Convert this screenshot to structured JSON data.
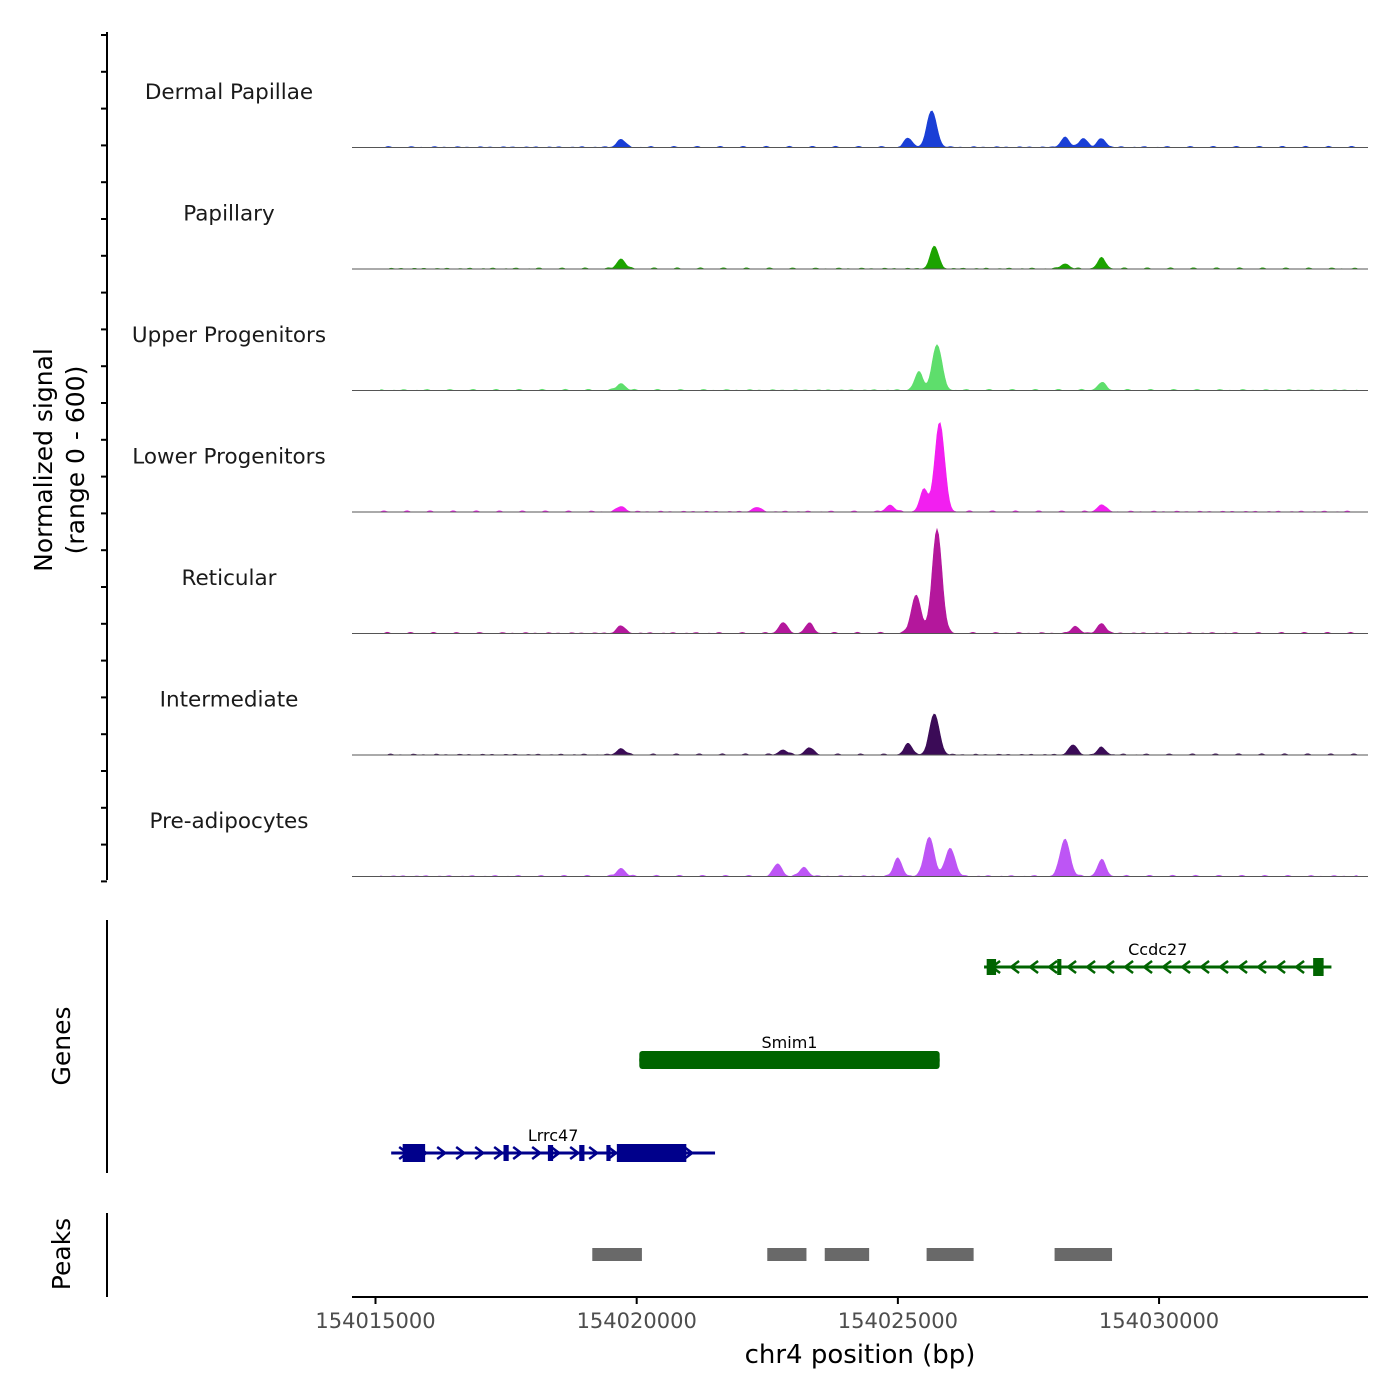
{
  "chart_data": {
    "type": "area",
    "title": "",
    "xlabel": "chr4 position (bp)",
    "ylabel": "Normalized signal",
    "ylabel_range": "(range 0 - 600)",
    "ylim": [
      0,
      600
    ],
    "xlim": [
      154014550,
      154034000
    ],
    "x_ticks": [
      154015000,
      154020000,
      154025000,
      154030000
    ],
    "x_tick_labels": [
      "154015000",
      "154020000",
      "154025000",
      "154030000"
    ],
    "tracks": [
      {
        "name": "Dermal Papillae",
        "color": "#1a3fd6",
        "peaks": [
          [
            154019700,
            45
          ],
          [
            154025200,
            50
          ],
          [
            154025650,
            200
          ],
          [
            154028200,
            55
          ],
          [
            154028550,
            50
          ],
          [
            154028900,
            48
          ]
        ]
      },
      {
        "name": "Papillary",
        "color": "#1ca300",
        "peaks": [
          [
            154019700,
            55
          ],
          [
            154025700,
            125
          ],
          [
            154028200,
            28
          ],
          [
            154028900,
            58
          ]
        ]
      },
      {
        "name": "Upper Progenitors",
        "color": "#5ede6c",
        "peaks": [
          [
            154019700,
            38
          ],
          [
            154025400,
            100
          ],
          [
            154025750,
            250
          ],
          [
            154028900,
            42
          ]
        ]
      },
      {
        "name": "Lower Progenitors",
        "color": "#f21ff0",
        "peaks": [
          [
            154019700,
            30
          ],
          [
            154022300,
            25
          ],
          [
            154024850,
            38
          ],
          [
            154025500,
            120
          ],
          [
            154025800,
            490
          ],
          [
            154028900,
            40
          ]
        ]
      },
      {
        "name": "Reticular",
        "color": "#b4179c",
        "peaks": [
          [
            154019700,
            42
          ],
          [
            154022800,
            60
          ],
          [
            154023300,
            55
          ],
          [
            154025350,
            210
          ],
          [
            154025750,
            570
          ],
          [
            154028400,
            38
          ],
          [
            154028900,
            55
          ]
        ]
      },
      {
        "name": "Intermediate",
        "color": "#3b0b57",
        "peaks": [
          [
            154019700,
            35
          ],
          [
            154022800,
            28
          ],
          [
            154023300,
            40
          ],
          [
            154025200,
            60
          ],
          [
            154025700,
            225
          ],
          [
            154028350,
            55
          ],
          [
            154028900,
            40
          ]
        ]
      },
      {
        "name": "Pre-adipocytes",
        "color": "#bd55f5",
        "peaks": [
          [
            154019700,
            45
          ],
          [
            154022700,
            70
          ],
          [
            154023200,
            50
          ],
          [
            154025000,
            100
          ],
          [
            154025600,
            215
          ],
          [
            154026000,
            155
          ],
          [
            154028200,
            205
          ],
          [
            154028900,
            90
          ]
        ]
      }
    ],
    "genes": [
      {
        "name": "Ccdc27",
        "start": 154026650,
        "end": 154033300,
        "strand": "-",
        "color": "#006400",
        "row": 1
      },
      {
        "name": "Smim1",
        "start": 154020050,
        "end": 154025800,
        "strand": "+",
        "color": "#006400",
        "row": 2
      },
      {
        "name": "Lrrc47",
        "start": 154015300,
        "end": 154021500,
        "strand": "+",
        "color": "#00008b",
        "row": 3
      }
    ],
    "peaks_track": [
      [
        154019150,
        154020100
      ],
      [
        154022500,
        154023250
      ],
      [
        154023600,
        154024450
      ],
      [
        154025550,
        154026450
      ],
      [
        154028000,
        154029100
      ]
    ],
    "panel_labels": {
      "genes": "Genes",
      "peaks": "Peaks"
    },
    "colors": {
      "peak_bar": "#696969",
      "axis": "#000000",
      "baseline": "#555555"
    }
  }
}
